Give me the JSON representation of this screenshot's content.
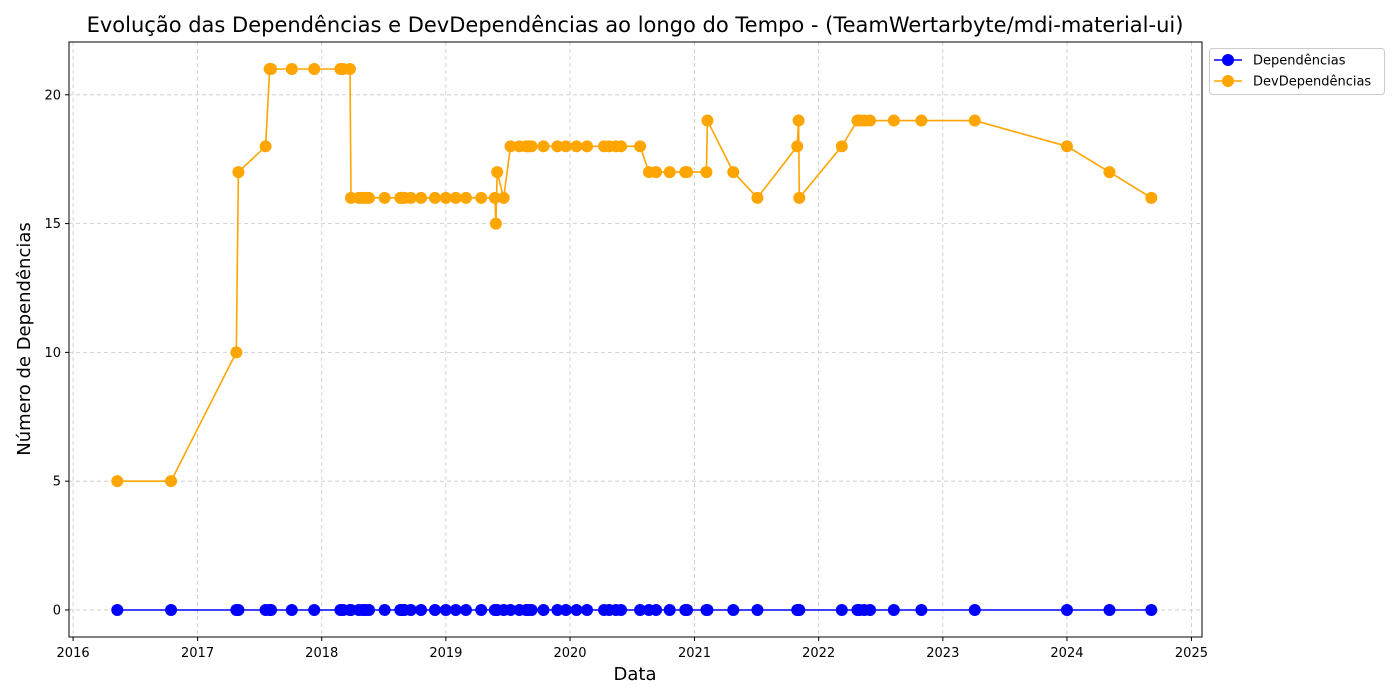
{
  "chart_data": {
    "type": "line",
    "title": "Evolução das Dependências e DevDependências ao longo do Tempo - (TeamWertarbyte/mdi-material-ui)",
    "xlabel": "Data",
    "ylabel": "Número de Dependências",
    "x_ticks": [
      "2016",
      "2017",
      "2018",
      "2019",
      "2020",
      "2021",
      "2022",
      "2023",
      "2024",
      "2025"
    ],
    "y_ticks": [
      0,
      5,
      10,
      15,
      20
    ],
    "ylim": [
      -1.05,
      22.05
    ],
    "xlim": [
      "2015-12-20",
      "2025-02-01"
    ],
    "grid": true,
    "legend_position": "top-right, outside plot area",
    "x": [
      "2016-05-10",
      "2016-10-15",
      "2017-04-25",
      "2017-05-01",
      "2017-07-20",
      "2017-08-01",
      "2017-08-05",
      "2017-10-05",
      "2017-12-10",
      "2018-02-25",
      "2018-03-05",
      "2018-03-25",
      "2018-03-28",
      "2018-04-20",
      "2018-05-01",
      "2018-05-10",
      "2018-05-20",
      "2018-07-05",
      "2018-08-20",
      "2018-08-25",
      "2018-09-01",
      "2018-09-20",
      "2018-10-20",
      "2018-11-30",
      "2019-01-01",
      "2019-01-30",
      "2019-03-01",
      "2019-04-15",
      "2019-05-25",
      "2019-05-28",
      "2019-06-01",
      "2019-06-20",
      "2019-07-10",
      "2019-08-05",
      "2019-08-25",
      "2019-09-01",
      "2019-09-10",
      "2019-10-15",
      "2019-11-25",
      "2019-12-20",
      "2020-01-20",
      "2020-02-20",
      "2020-04-10",
      "2020-04-25",
      "2020-05-15",
      "2020-05-30",
      "2020-07-25",
      "2020-08-20",
      "2020-09-10",
      "2020-10-20",
      "2020-12-05",
      "2020-12-10",
      "2021-02-05",
      "2021-02-08",
      "2021-04-25",
      "2021-07-05",
      "2021-10-30",
      "2021-11-03",
      "2021-11-05",
      "2022-03-10",
      "2022-04-25",
      "2022-05-01",
      "2022-05-15",
      "2022-06-01",
      "2022-08-10",
      "2022-10-30",
      "2023-04-05",
      "2024-01-01",
      "2024-05-05",
      "2024-09-05"
    ],
    "series": [
      {
        "name": "Dependências",
        "color": "#0000ff",
        "values": [
          0,
          0,
          0,
          0,
          0,
          0,
          0,
          0,
          0,
          0,
          0,
          0,
          0,
          0,
          0,
          0,
          0,
          0,
          0,
          0,
          0,
          0,
          0,
          0,
          0,
          0,
          0,
          0,
          0,
          0,
          0,
          0,
          0,
          0,
          0,
          0,
          0,
          0,
          0,
          0,
          0,
          0,
          0,
          0,
          0,
          0,
          0,
          0,
          0,
          0,
          0,
          0,
          0,
          0,
          0,
          0,
          0,
          0,
          0,
          0,
          0,
          0,
          0,
          0,
          0,
          0,
          0,
          0,
          0,
          0
        ]
      },
      {
        "name": "DevDependências",
        "color": "#ffa500",
        "values": [
          5,
          5,
          10,
          17,
          18,
          21,
          21,
          21,
          21,
          21,
          21,
          21,
          16,
          16,
          16,
          16,
          16,
          16,
          16,
          16,
          16,
          16,
          16,
          16,
          16,
          16,
          16,
          16,
          16,
          15,
          17,
          16,
          18,
          18,
          18,
          18,
          18,
          18,
          18,
          18,
          18,
          18,
          18,
          18,
          18,
          18,
          18,
          17,
          17,
          17,
          17,
          17,
          17,
          19,
          17,
          16,
          18,
          19,
          16,
          18,
          19,
          19,
          19,
          19,
          19,
          19,
          19,
          18,
          17,
          16
        ]
      }
    ]
  }
}
